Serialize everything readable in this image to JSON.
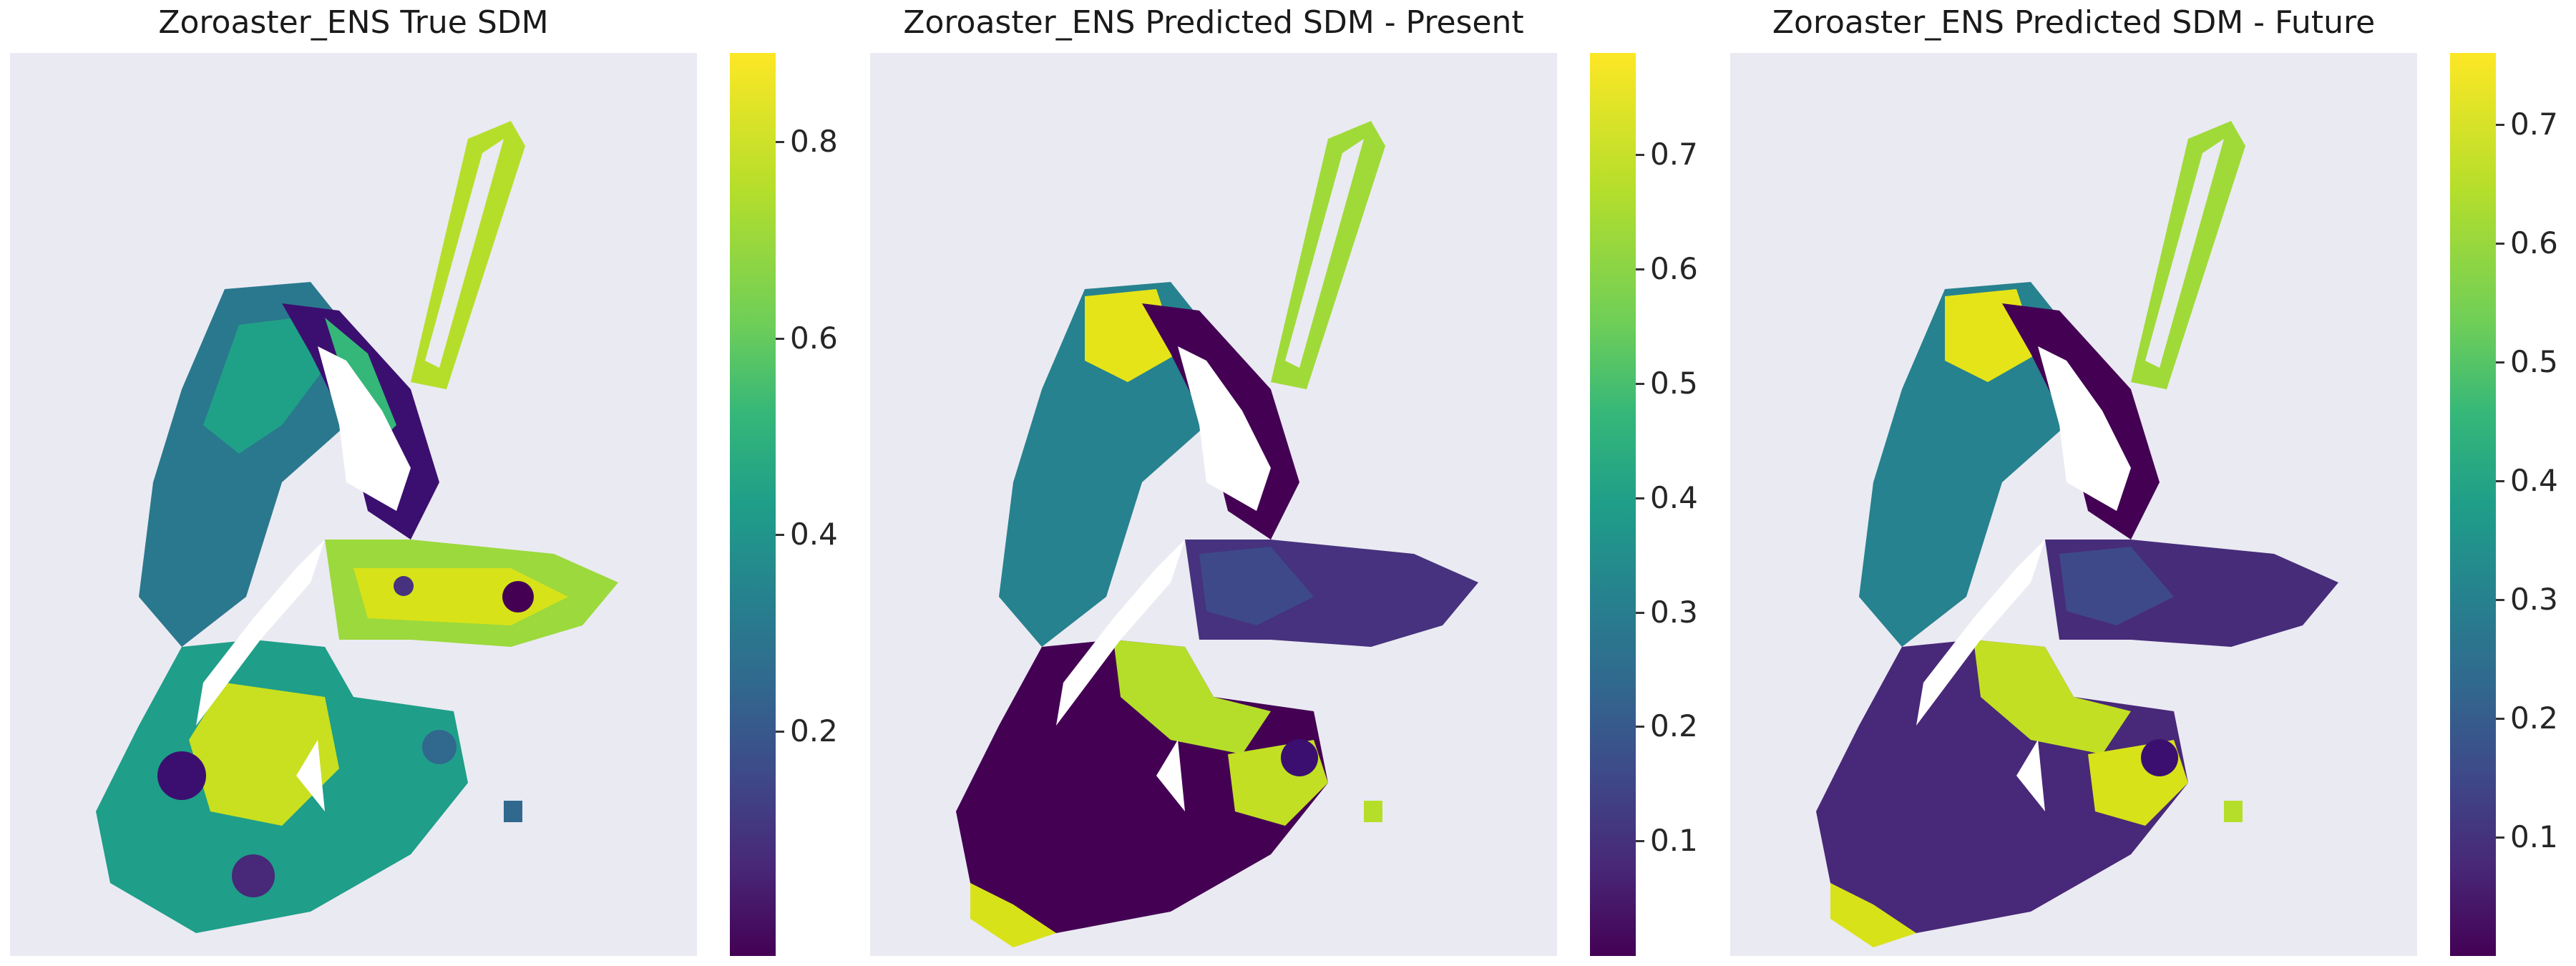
{
  "panels": [
    {
      "title": "Zoroaster_ENS True SDM",
      "colorbar": {
        "min": 0.0,
        "max": 0.92,
        "ticks": [
          0.2,
          0.4,
          0.6,
          0.8
        ]
      },
      "tick_labels": [
        "0.2",
        "0.4",
        "0.6",
        "0.8"
      ]
    },
    {
      "title": "Zoroaster_ENS Predicted SDM - Present",
      "colorbar": {
        "min": 0.0,
        "max": 0.79,
        "ticks": [
          0.1,
          0.2,
          0.3,
          0.4,
          0.5,
          0.6,
          0.7
        ]
      },
      "tick_labels": [
        "0.1",
        "0.2",
        "0.3",
        "0.4",
        "0.5",
        "0.6",
        "0.7"
      ]
    },
    {
      "title": "Zoroaster_ENS Predicted SDM - Future",
      "colorbar": {
        "min": 0.0,
        "max": 0.76,
        "ticks": [
          0.1,
          0.2,
          0.3,
          0.4,
          0.5,
          0.6,
          0.7
        ]
      },
      "tick_labels": [
        "0.1",
        "0.2",
        "0.3",
        "0.4",
        "0.5",
        "0.6",
        "0.7"
      ]
    }
  ],
  "chart_data": [
    {
      "type": "heatmap",
      "title": "Zoroaster_ENS True SDM",
      "colormap": "viridis",
      "colorbar_range": [
        0.0,
        0.92
      ],
      "colorbar_ticks": [
        0.2,
        0.4,
        0.6,
        0.8
      ],
      "grid": false
    },
    {
      "type": "heatmap",
      "title": "Zoroaster_ENS Predicted SDM - Present",
      "colormap": "viridis",
      "colorbar_range": [
        0.0,
        0.79
      ],
      "colorbar_ticks": [
        0.1,
        0.2,
        0.3,
        0.4,
        0.5,
        0.6,
        0.7
      ],
      "grid": false
    },
    {
      "type": "heatmap",
      "title": "Zoroaster_ENS Predicted SDM - Future",
      "colormap": "viridis",
      "colorbar_range": [
        0.0,
        0.76
      ],
      "colorbar_ticks": [
        0.1,
        0.2,
        0.3,
        0.4,
        0.5,
        0.6,
        0.7
      ],
      "grid": false
    }
  ],
  "colors": {
    "viridis_low": "#440154",
    "viridis_mid": "#21918c",
    "viridis_high": "#fde725",
    "plot_background": "#eaeaf2"
  }
}
